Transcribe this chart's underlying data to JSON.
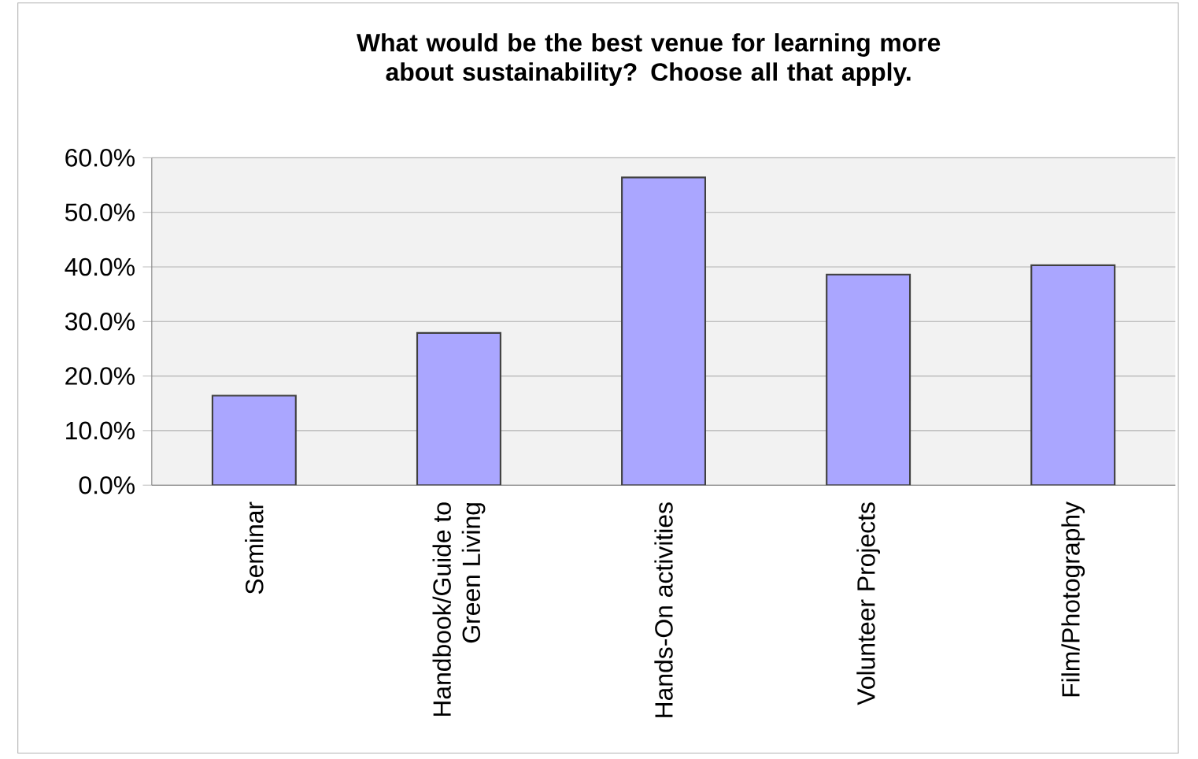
{
  "chart_data": {
    "type": "bar",
    "title": "What would be the best venue for learning more about sustainability? Choose all that apply.",
    "categories": [
      "Seminar",
      "Handbook/Guide to Green Living",
      "Hands-On activities",
      "Volunteer Projects",
      "Film/Photography"
    ],
    "values": [
      16.4,
      27.9,
      56.4,
      38.6,
      40.3
    ],
    "color": "#aaa6ff",
    "ylim": [
      0,
      60
    ],
    "yticks": [
      {
        "value": 0,
        "label": "0.0%"
      },
      {
        "value": 10,
        "label": "10.0%"
      },
      {
        "value": 20,
        "label": "20.0%"
      },
      {
        "value": 30,
        "label": "30.0%"
      },
      {
        "value": 40,
        "label": "40.0%"
      },
      {
        "value": 50,
        "label": "50.0%"
      },
      {
        "value": 60,
        "label": "60.0%"
      }
    ],
    "grid": "y"
  }
}
